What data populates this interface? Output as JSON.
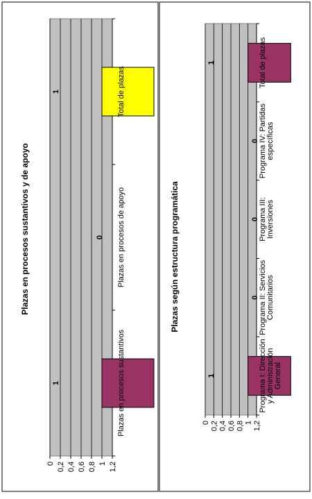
{
  "chart_data": [
    {
      "type": "bar",
      "title": "Plazas en procesos sustantivos y de apoyo",
      "categories": [
        "Plazas en procesos sustantivos",
        "Plazas en procesos de apoyo",
        "Total de plazas"
      ],
      "values": [
        1,
        0,
        1
      ],
      "data_labels": [
        "1",
        "0",
        "1"
      ],
      "bar_colors": [
        "#993366",
        null,
        "#ffff00"
      ],
      "ylim": [
        0,
        1.2
      ],
      "yticks": [
        "0",
        "0,2",
        "0,4",
        "0,6",
        "0,8",
        "1",
        "1,2"
      ],
      "grid": true,
      "orientation": "rotated-90-ccw"
    },
    {
      "type": "bar",
      "title": "Plazas según estructura programática",
      "categories": [
        "Programa I: Dirección y Administración General",
        "Programa II: Servicios Comunitarios",
        "Programa III: Inversiones",
        "Programa IV: Partidas específicas",
        "Total de plazas"
      ],
      "category_lines": [
        [
          "Programa I: Dirección",
          "y Administración",
          "General"
        ],
        [
          "Programa II: Servicios",
          "Comunitarios"
        ],
        [
          "Programa III:",
          "Inversiones"
        ],
        [
          "Programa IV: Partidas",
          "específicas"
        ],
        [
          "Total de plazas"
        ]
      ],
      "values": [
        1,
        0,
        0,
        0,
        1
      ],
      "data_labels": [
        "1",
        "0",
        "0",
        "0",
        "1"
      ],
      "bar_colors": [
        "#993366",
        null,
        null,
        null,
        "#993366"
      ],
      "ylim": [
        0,
        1.2
      ],
      "yticks": [
        "0",
        "0,2",
        "0,4",
        "0,6",
        "0,8",
        "1",
        "1,2"
      ],
      "grid": true,
      "orientation": "rotated-90-ccw"
    }
  ]
}
